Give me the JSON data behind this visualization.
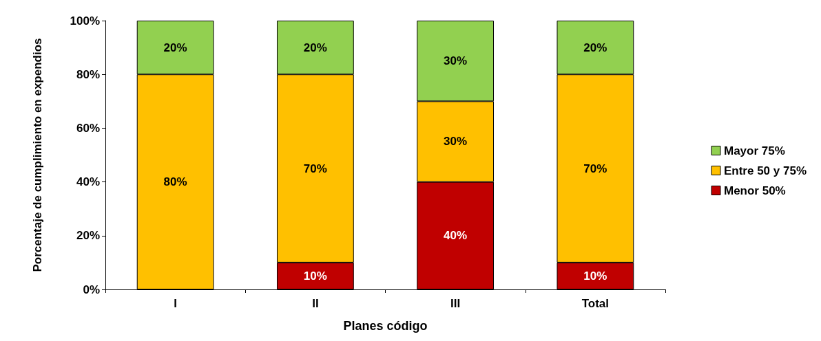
{
  "chart_data": {
    "type": "bar",
    "stacked": true,
    "xlabel": "Planes código",
    "ylabel": "Porcentaje de cumplimiento en expendios",
    "categories": [
      "I",
      "II",
      "III",
      "Total"
    ],
    "series": [
      {
        "name": "Menor 50%",
        "color": "#c00000",
        "values": [
          null,
          10,
          40,
          10
        ],
        "value_labels": [
          null,
          "10%",
          "40%",
          "10%"
        ]
      },
      {
        "name": "Entre 50 y 75%",
        "color": "#ffc000",
        "values": [
          80,
          70,
          30,
          70
        ],
        "value_labels": [
          "80%",
          "70%",
          "30%",
          "70%"
        ]
      },
      {
        "name": "Mayor 75%",
        "color": "#92d050",
        "values": [
          20,
          20,
          30,
          20
        ],
        "value_labels": [
          "20%",
          "20%",
          "30%",
          "20%"
        ]
      }
    ],
    "ylim": [
      0,
      100
    ],
    "yticks": [
      {
        "value": 0,
        "label": "0%"
      },
      {
        "value": 20,
        "label": "20%"
      },
      {
        "value": 40,
        "label": "40%"
      },
      {
        "value": 60,
        "label": "60%"
      },
      {
        "value": 80,
        "label": "80%"
      },
      {
        "value": 100,
        "label": "100%"
      }
    ],
    "grid": false,
    "legend": "right"
  }
}
